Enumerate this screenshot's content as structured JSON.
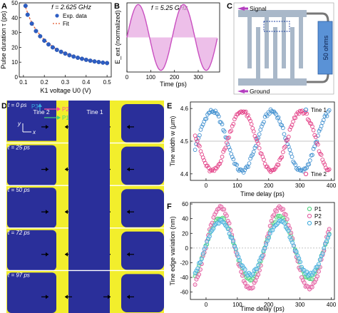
{
  "chart_data": [
    {
      "panel": "A",
      "type": "scatter",
      "annotation": "f = 2.625 GHz",
      "xlabel": "K1 voltage U0 (V)",
      "ylabel": "Pulse duration τ (ps)",
      "xlim": [
        0.08,
        0.52
      ],
      "ylim": [
        0,
        50
      ],
      "xticks": [
        "0.1",
        "0.2",
        "0.3",
        "0.4",
        "0.5"
      ],
      "yticks": [
        "0",
        "10",
        "20",
        "30",
        "40",
        "50"
      ],
      "legend": [
        "Exp. data",
        "Fit"
      ],
      "legend_position": "top-right",
      "series": [
        {
          "name": "Exp. data",
          "x": [
            0.11,
            0.12,
            0.14,
            0.16,
            0.18,
            0.2,
            0.22,
            0.24,
            0.26,
            0.28,
            0.3,
            0.32,
            0.34,
            0.36,
            0.38,
            0.4,
            0.42,
            0.44,
            0.46,
            0.48,
            0.5
          ],
          "y": [
            48,
            42,
            36,
            31,
            27.5,
            24.5,
            22,
            20,
            18.3,
            17,
            15.8,
            14.7,
            13.8,
            13,
            12.3,
            11.6,
            11,
            10.5,
            10.1,
            9.7,
            9.4
          ]
        },
        {
          "name": "Fit",
          "x": [
            0.11,
            0.13,
            0.15,
            0.17,
            0.2,
            0.25,
            0.3,
            0.35,
            0.4,
            0.45,
            0.5
          ],
          "y": [
            47,
            39.5,
            34,
            30,
            25,
            19.5,
            16,
            13.5,
            11.8,
            10.4,
            9.3
          ]
        }
      ]
    },
    {
      "panel": "B",
      "type": "area",
      "annotation": "f = 5.25 GHz",
      "xlabel": "Time (ps)",
      "ylabel": "E_ext (normalized)",
      "xlim": [
        0,
        390
      ],
      "ylim": [
        -1.05,
        1.05
      ],
      "xticks": [
        "0",
        "100",
        "200",
        "300"
      ],
      "series": [
        {
          "name": "",
          "period_ps": 190.5,
          "amplitude": 1,
          "phase": "sin"
        }
      ]
    },
    {
      "panel": "E",
      "type": "scatter",
      "xlabel": "Time delay (ps)",
      "ylabel": "Tine width w (μm)",
      "xlim": [
        -50,
        410
      ],
      "ylim": [
        4.38,
        4.62
      ],
      "xticks": [
        "0",
        "100",
        "200",
        "300",
        "400"
      ],
      "yticks": [
        "4.4",
        "4.5",
        "4.6"
      ],
      "reference_line": 4.5,
      "series": [
        {
          "name": "Tine 1",
          "offset": 4.5,
          "amplitude": 0.092,
          "period_ps": 190,
          "peak_at_ps": 20
        },
        {
          "name": "Tine 2",
          "offset": 4.5,
          "amplitude": 0.092,
          "period_ps": 190,
          "peak_at_ps": 115
        }
      ]
    },
    {
      "panel": "F",
      "type": "scatter",
      "xlabel": "Time delay (ps)",
      "ylabel": "Tine edge variation (nm)",
      "xlim": [
        -50,
        410
      ],
      "ylim": [
        -70,
        62
      ],
      "xticks": [
        "0",
        "100",
        "200",
        "300",
        "400"
      ],
      "yticks": [
        "-60",
        "-40",
        "-20",
        "0",
        "20",
        "40",
        "60"
      ],
      "legend": [
        "P1",
        "P2",
        "P3"
      ],
      "legend_position": "top-right",
      "series": [
        {
          "name": "P1",
          "amplitude": 42,
          "period_ps": 190,
          "peak_at_ps": 45
        },
        {
          "name": "P2",
          "amplitude": 55,
          "period_ps": 190,
          "peak_at_ps": 45
        },
        {
          "name": "P3",
          "amplitude": 36,
          "period_ps": 190,
          "peak_at_ps": 45
        }
      ]
    }
  ],
  "panels": {
    "A": "A",
    "B": "B",
    "C": "C",
    "D": "D",
    "E": "E",
    "F": "F"
  },
  "diagram_c": {
    "signal_label": "Signal",
    "ground_label": "Ground",
    "resistor_label": "50 ohms"
  },
  "panel_d": {
    "tine1_label": "Tine 1",
    "tine2_label": "Tine 2",
    "point_labels": [
      "P1",
      "P2",
      "P3"
    ],
    "axis_labels": [
      "x",
      "y"
    ],
    "frame_times": [
      "t = 0 ps",
      "t = 25 ps",
      "t = 50 ps",
      "t = 72 ps",
      "t = 97 ps"
    ]
  },
  "colors": {
    "blue_dots": "#2d5ec4",
    "fit_line": "#e2562a",
    "magenta": "#c94fc0",
    "tine1": "#3f8fcf",
    "tine2": "#e33f86",
    "p1": "#45d179",
    "p2": "#e0569c",
    "p3": "#39a8dc",
    "sem_yellow": "#f2ee2c",
    "sem_blue": "#2a2f9a",
    "electrode": "#a9b8c9"
  }
}
